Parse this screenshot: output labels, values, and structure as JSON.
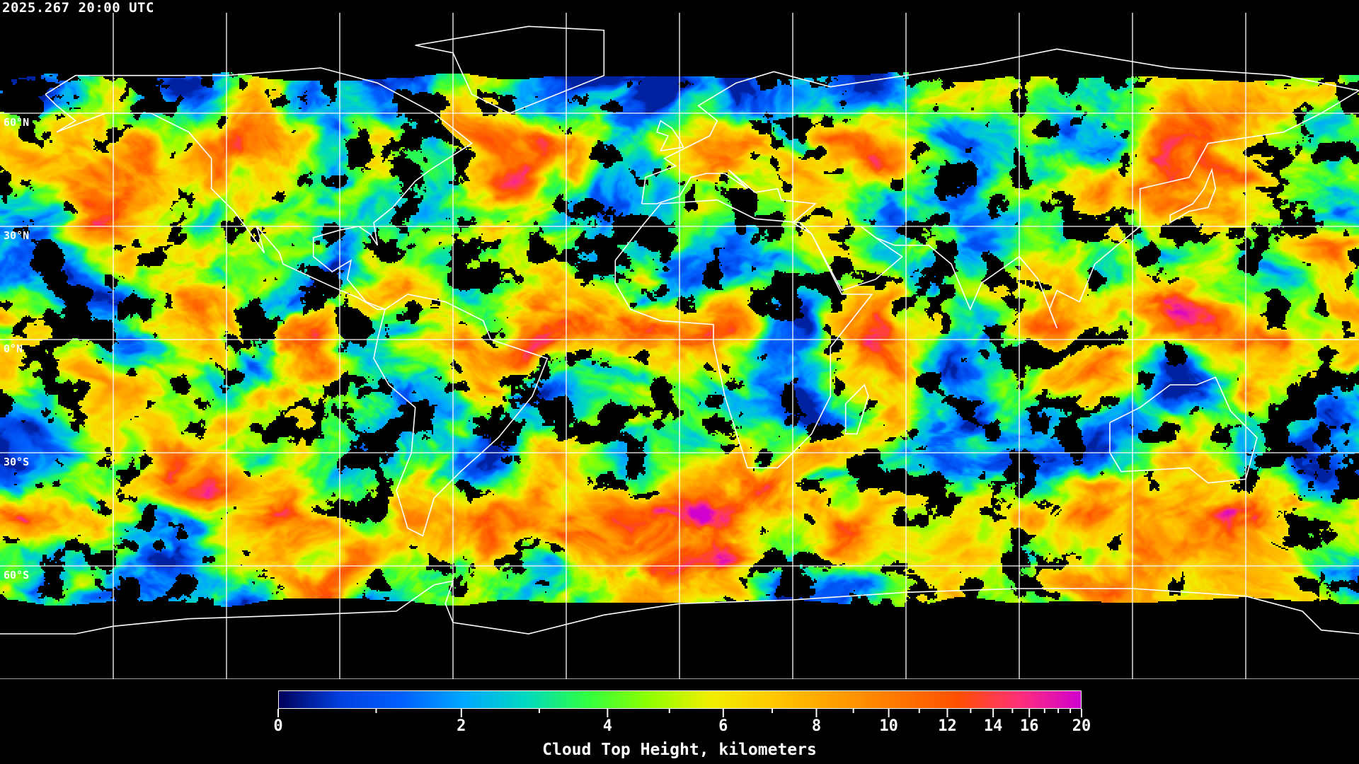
{
  "timestamp": "2025.267 20:00 UTC",
  "map": {
    "projection": "equirectangular",
    "lat_labels": [
      {
        "lat": 60,
        "text": "60°N"
      },
      {
        "lat": 30,
        "text": "30°N"
      },
      {
        "lat": 0,
        "text": "0°N"
      },
      {
        "lat": -30,
        "text": "30°S"
      },
      {
        "lat": -60,
        "text": "60°S"
      }
    ],
    "graticule_spacing_deg": 30,
    "graticule_color": "#ffffff",
    "coastline_color": "#ffffff",
    "clear_sky_color": "#000000"
  },
  "colorbar": {
    "title": "Cloud Top Height, kilometers",
    "range": [
      0,
      20
    ],
    "major_ticks": [
      "0",
      "2",
      "4",
      "6",
      "8",
      "10",
      "12",
      "14",
      "16",
      "20"
    ],
    "minor_ticks": [
      1,
      3,
      5,
      7,
      9,
      11,
      13,
      15,
      17,
      18,
      19
    ],
    "colormap": [
      "#00005a",
      "#0040e0",
      "#0060ff",
      "#00a8ff",
      "#00d8c0",
      "#30ff40",
      "#90ff00",
      "#f0ee00",
      "#ffc800",
      "#ffa000",
      "#ff7800",
      "#ff5000",
      "#ff3078",
      "#d000d0"
    ]
  }
}
